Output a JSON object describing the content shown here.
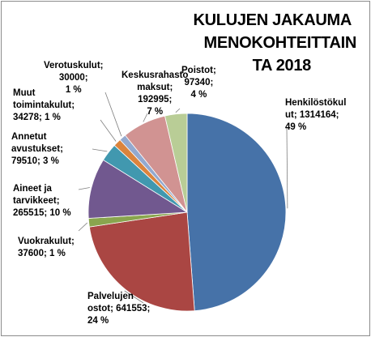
{
  "chart_data": {
    "type": "pie",
    "title_lines": [
      "KULUJEN JAKAUMA",
      "MENOKOHTEITTAIN",
      "TA 2018"
    ],
    "slices": [
      {
        "name": "Henkilöstökulut",
        "label_lines": [
          "Henkilöstökul",
          "ut; 1314164;",
          "49 %"
        ],
        "value": 1314164,
        "percent": "49 %",
        "color": "#4672a8"
      },
      {
        "name": "Palvelujen ostot",
        "label_lines": [
          "Palvelujen",
          "ostot; 641553;",
          "24 %"
        ],
        "value": 641553,
        "percent": "24 %",
        "color": "#aa4643"
      },
      {
        "name": "Vuokrakulut",
        "label_lines": [
          "Vuokrakulut;",
          "37600; 1 %"
        ],
        "value": 37600,
        "percent": "1 %",
        "color": "#89a54e"
      },
      {
        "name": "Aineet ja tarvikkeet",
        "label_lines": [
          "Aineet ja",
          "tarvikkeet;",
          "265515; 10 %"
        ],
        "value": 265515,
        "percent": "10 %",
        "color": "#71588f"
      },
      {
        "name": "Annetut avustukset",
        "label_lines": [
          "Annetut",
          "avustukset;",
          "79510; 3 %"
        ],
        "value": 79510,
        "percent": "3 %",
        "color": "#4198af"
      },
      {
        "name": "Muut toimintakulut",
        "label_lines": [
          "Muut",
          "toimintakulut;",
          "34278; 1 %"
        ],
        "value": 34278,
        "percent": "1 %",
        "color": "#db843d"
      },
      {
        "name": "Verotuskulut",
        "label_lines": [
          "Verotuskulut;",
          "30000;",
          "1 %"
        ],
        "value": 30000,
        "percent": "1 %",
        "color": "#93a9cf"
      },
      {
        "name": "Keskusrahasto maksut",
        "label_lines": [
          "Keskusrahasto",
          "maksut;",
          "192995;",
          "7 %"
        ],
        "value": 192995,
        "percent": "7 %",
        "color": "#d19392"
      },
      {
        "name": "Poistot",
        "label_lines": [
          "Poistot;",
          "97340;",
          "4 %"
        ],
        "value": 97340,
        "percent": "4 %",
        "color": "#b9cd96"
      }
    ],
    "start_angle_deg": 0,
    "direction": "clockwise",
    "legend": "none",
    "data_labels": "outside with leader lines"
  }
}
